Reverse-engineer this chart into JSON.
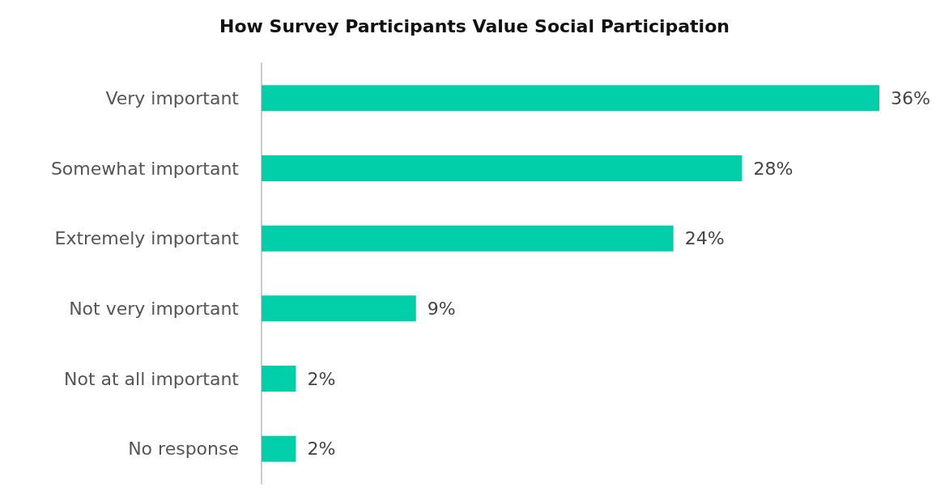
{
  "chart_data": {
    "type": "bar",
    "orientation": "horizontal",
    "title": "How Survey Participants Value Social Participation",
    "categories": [
      "Very important",
      "Somewhat important",
      "Extremely important",
      "Not very important",
      "Not at all important",
      "No response"
    ],
    "values": [
      36,
      28,
      24,
      9,
      2,
      2
    ],
    "value_labels": [
      "36%",
      "28%",
      "24%",
      "9%",
      "2%",
      "2%"
    ],
    "color": "#00cfaa"
  }
}
